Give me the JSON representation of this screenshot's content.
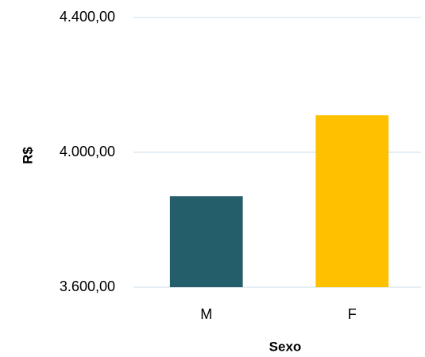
{
  "chart_data": {
    "type": "bar",
    "categories": [
      "M",
      "F"
    ],
    "values": [
      3870,
      4110
    ],
    "colors": [
      "#255e6b",
      "#ffc000"
    ],
    "ylabel": "R$",
    "xlabel": "Sexo",
    "ylim": [
      3600,
      4400
    ],
    "yticks": [
      {
        "value": 3600,
        "label": "3.600,00"
      },
      {
        "value": 4000,
        "label": "4.000,00"
      },
      {
        "value": 4400,
        "label": "4.400,00"
      }
    ],
    "grid": true
  }
}
